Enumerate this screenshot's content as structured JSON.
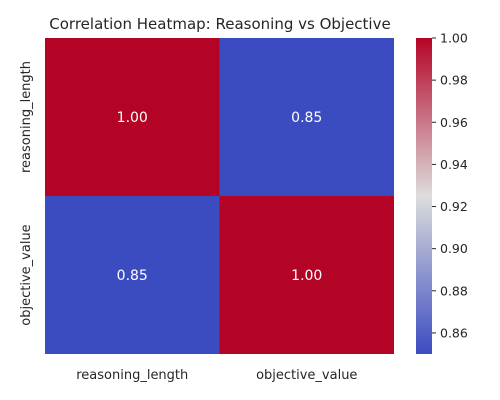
{
  "chart_data": {
    "type": "heatmap",
    "title": "Correlation Heatmap: Reasoning vs Objective",
    "rows": [
      "reasoning_length",
      "objective_value"
    ],
    "columns": [
      "reasoning_length",
      "objective_value"
    ],
    "values": [
      [
        1.0,
        0.85
      ],
      [
        0.85,
        1.0
      ]
    ],
    "cell_labels": [
      [
        "1.00",
        "0.85"
      ],
      [
        "0.85",
        "1.00"
      ]
    ],
    "colormap": "coolwarm",
    "colorbar": {
      "min": 0.85,
      "max": 1.0,
      "ticks": [
        0.86,
        0.88,
        0.9,
        0.92,
        0.94,
        0.96,
        0.98,
        1.0
      ],
      "tick_labels": [
        "0.86",
        "0.88",
        "0.90",
        "0.92",
        "0.94",
        "0.96",
        "0.98",
        "1.00"
      ]
    },
    "colors": {
      "low": "#3b4cc0",
      "mid": "#dddddd",
      "high": "#b40426"
    }
  }
}
